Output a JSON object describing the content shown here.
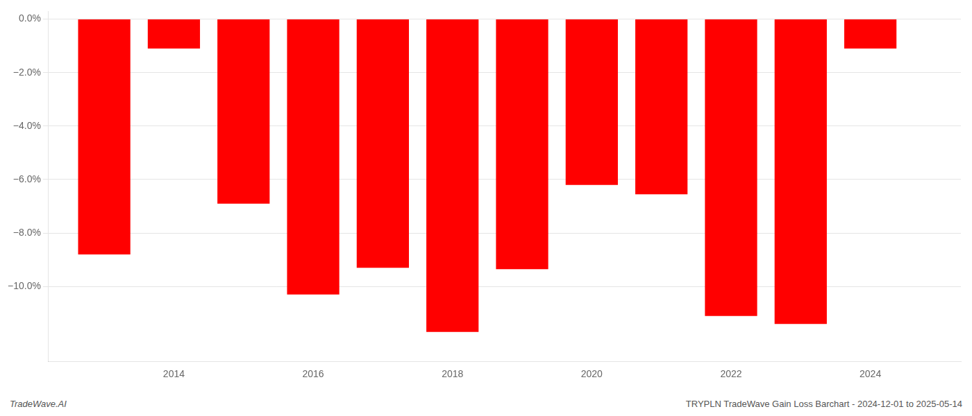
{
  "chart_data": {
    "type": "bar",
    "x": [
      2013,
      2014,
      2015,
      2016,
      2017,
      2018,
      2019,
      2020,
      2021,
      2022,
      2023,
      2024
    ],
    "values": [
      -8.8,
      -1.1,
      -6.9,
      -10.3,
      -9.3,
      -11.7,
      -9.35,
      -6.2,
      -6.55,
      -11.1,
      -11.4,
      -1.1
    ],
    "color": "#ff0000",
    "xlim": [
      2012.2,
      2025.3
    ],
    "xticks": [
      2014,
      2016,
      2018,
      2020,
      2022,
      2024
    ],
    "ylim": [
      -12.8,
      0.3
    ],
    "yticks": [
      {
        "value": 0.0,
        "label": "0.0%"
      },
      {
        "value": -2.0,
        "label": "−2.0%"
      },
      {
        "value": -4.0,
        "label": "−4.0%"
      },
      {
        "value": -6.0,
        "label": "−6.0%"
      },
      {
        "value": -8.0,
        "label": "−8.0%"
      },
      {
        "value": -10.0,
        "label": "−10.0%"
      }
    ],
    "grid": true,
    "annotations": [
      "TradeWave.AI",
      "TRYPLN TradeWave Gain Loss Barchart - 2024-12-01 to 2025-05-14"
    ]
  }
}
